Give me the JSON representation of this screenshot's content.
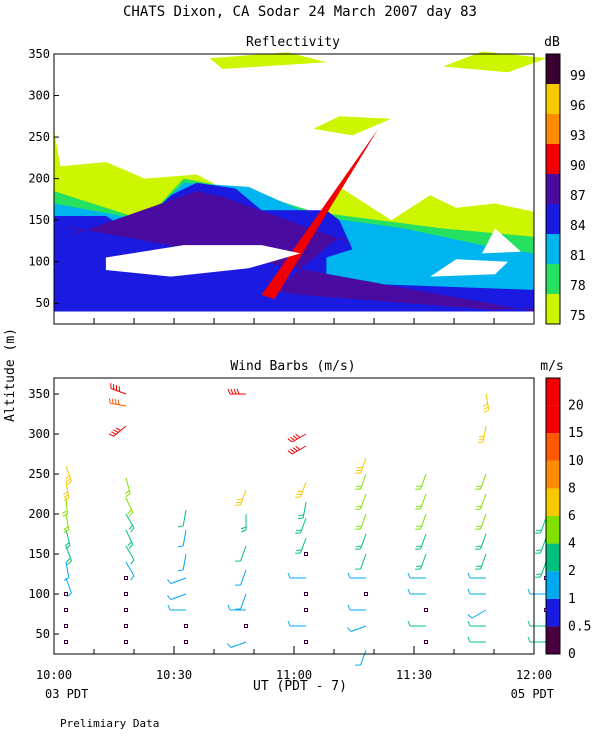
{
  "title": "CHATS Dixon, CA   Sodar   24 March 2007   day   83",
  "y_axis_label": "Altitude (m)",
  "x_axis": {
    "label": "UT  (PDT - 7)",
    "ticks": [
      "10:00",
      "10:30",
      "11:00",
      "11:30",
      "12:00"
    ],
    "start_note": "03 PDT",
    "end_note": "05 PDT"
  },
  "footer": "Prelimiary Data",
  "palette": {
    "c0": "#ccf500",
    "c1": "#26e060",
    "c2": "#00b4f0",
    "c3": "#1a1ae0",
    "c4": "#4a0ca0",
    "c5": "#f00000",
    "c6": "#ff8c00",
    "c7": "#f8c800",
    "c8": "#3a0030"
  },
  "chart_data": [
    {
      "type": "heatmap",
      "title": "Reflectivity",
      "unit": "dB",
      "ylim": [
        25,
        350
      ],
      "yticks": [
        50,
        100,
        150,
        200,
        250,
        300,
        350
      ],
      "xlim": [
        "10:00",
        "12:00"
      ],
      "colorbar": [
        {
          "label": "75",
          "color": "#ccf500"
        },
        {
          "label": "78",
          "color": "#26e060"
        },
        {
          "label": "81",
          "color": "#00b4f0"
        },
        {
          "label": "84",
          "color": "#1a1ae0"
        },
        {
          "label": "87",
          "color": "#4a0ca0"
        },
        {
          "label": "90",
          "color": "#f00000"
        },
        {
          "label": "93",
          "color": "#ff8c00"
        },
        {
          "label": "96",
          "color": "#f8c800"
        },
        {
          "label": "99",
          "color": "#3a0030"
        }
      ],
      "regions": [
        {
          "level": "c0",
          "points": [
            [
              0,
              40
            ],
            [
              0,
              258
            ],
            [
              1,
              215
            ],
            [
              8,
              220
            ],
            [
              14,
              200
            ],
            [
              22,
              205
            ],
            [
              28,
              180
            ],
            [
              34,
              170
            ],
            [
              40,
              150
            ],
            [
              44,
              190
            ],
            [
              48,
              170
            ],
            [
              52,
              150
            ],
            [
              58,
              180
            ],
            [
              62,
              165
            ],
            [
              68,
              170
            ],
            [
              74,
              160
            ],
            [
              74,
              40
            ]
          ]
        },
        {
          "level": "c0",
          "points": [
            [
              24,
              345
            ],
            [
              36,
              352
            ],
            [
              42,
              340
            ],
            [
              26,
              332
            ]
          ]
        },
        {
          "level": "c0",
          "points": [
            [
              60,
              335
            ],
            [
              66,
              353
            ],
            [
              76,
              345
            ],
            [
              70,
              328
            ]
          ]
        },
        {
          "level": "c0",
          "points": [
            [
              40,
              260
            ],
            [
              44,
              275
            ],
            [
              52,
              272
            ],
            [
              46,
              252
            ]
          ]
        },
        {
          "level": "c1",
          "points": [
            [
              0,
              40
            ],
            [
              0,
              185
            ],
            [
              14,
              150
            ],
            [
              20,
              200
            ],
            [
              30,
              185
            ],
            [
              40,
              160
            ],
            [
              60,
              140
            ],
            [
              74,
              130
            ],
            [
              74,
              40
            ]
          ]
        },
        {
          "level": "c2",
          "points": [
            [
              0,
              40
            ],
            [
              0,
              170
            ],
            [
              14,
              150
            ],
            [
              20,
              195
            ],
            [
              30,
              190
            ],
            [
              40,
              155
            ],
            [
              54,
              140
            ],
            [
              66,
              120
            ],
            [
              74,
              110
            ],
            [
              74,
              40
            ]
          ]
        },
        {
          "level": "c3",
          "points": [
            [
              0,
              40
            ],
            [
              0,
              155
            ],
            [
              8,
              155
            ],
            [
              12,
              135
            ],
            [
              14,
              150
            ],
            [
              18,
              180
            ],
            [
              22,
              195
            ],
            [
              28,
              188
            ],
            [
              32,
              162
            ],
            [
              42,
              162
            ],
            [
              44,
              150
            ],
            [
              46,
              115
            ],
            [
              42,
              105
            ],
            [
              42,
              75
            ],
            [
              60,
              70
            ],
            [
              74,
              66
            ],
            [
              74,
              40
            ]
          ]
        },
        {
          "level": "c4",
          "points": [
            [
              0,
              145
            ],
            [
              4,
              138
            ],
            [
              2,
              130
            ],
            [
              22,
              185
            ],
            [
              26,
              178
            ],
            [
              46,
              122
            ],
            [
              44,
              130
            ],
            [
              34,
              65
            ],
            [
              38,
              60
            ],
            [
              68,
              42
            ],
            [
              74,
              44
            ],
            [
              74,
              40
            ]
          ]
        },
        {
          "level": "c5",
          "points": [
            [
              32,
              60
            ],
            [
              34,
              55
            ],
            [
              50,
              260
            ]
          ]
        }
      ],
      "holes": [
        {
          "points": [
            [
              8,
              105
            ],
            [
              20,
              120
            ],
            [
              32,
              120
            ],
            [
              38,
              110
            ],
            [
              30,
              92
            ],
            [
              18,
              82
            ],
            [
              8,
              90
            ]
          ]
        },
        {
          "points": [
            [
              58,
              82
            ],
            [
              62,
              103
            ],
            [
              70,
              100
            ],
            [
              68,
              85
            ]
          ]
        },
        {
          "points": [
            [
              66,
              110
            ],
            [
              68,
              140
            ],
            [
              72,
              112
            ]
          ]
        }
      ]
    },
    {
      "type": "scatter",
      "title": "Wind Barbs (m/s)",
      "unit": "m/s",
      "ylim": [
        25,
        370
      ],
      "yticks": [
        50,
        100,
        150,
        200,
        250,
        300,
        350
      ],
      "xlim": [
        "10:00",
        "12:00"
      ],
      "colorbar": [
        {
          "label": "0",
          "color": "#4a0040"
        },
        {
          "label": "0.5",
          "color": "#1a1ae0"
        },
        {
          "label": "1",
          "color": "#00a8f0"
        },
        {
          "label": "2",
          "color": "#00c080"
        },
        {
          "label": "4",
          "color": "#80e000"
        },
        {
          "label": "6",
          "color": "#f8c800"
        },
        {
          "label": "8",
          "color": "#ff8c00"
        },
        {
          "label": "10",
          "color": "#ff5a00"
        },
        {
          "label": "15",
          "color": "#f00000"
        },
        {
          "label": "20",
          "color": "#f00000"
        }
      ],
      "colorbar_ticks": [
        "0",
        "0.5",
        "1",
        "2",
        "4",
        "6",
        "8",
        "10",
        "15",
        "20"
      ],
      "points": [
        {
          "t": "10:00",
          "alt": 40,
          "speed": 0
        },
        {
          "t": "10:00",
          "alt": 60,
          "speed": 0
        },
        {
          "t": "10:00",
          "alt": 80,
          "speed": 0
        },
        {
          "t": "10:00",
          "alt": 100,
          "speed": 0
        },
        {
          "t": "10:00",
          "alt": 120,
          "speed": 1,
          "dir": 160
        },
        {
          "t": "10:00",
          "alt": 140,
          "speed": 1,
          "dir": 170
        },
        {
          "t": "10:00",
          "alt": 160,
          "speed": 3,
          "dir": 160
        },
        {
          "t": "10:00",
          "alt": 180,
          "speed": 3,
          "dir": 165
        },
        {
          "t": "10:00",
          "alt": 200,
          "speed": 4,
          "dir": 170
        },
        {
          "t": "10:00",
          "alt": 220,
          "speed": 4,
          "dir": 175
        },
        {
          "t": "10:00",
          "alt": 240,
          "speed": 6,
          "dir": 170
        },
        {
          "t": "10:00",
          "alt": 260,
          "speed": 6,
          "dir": 160
        },
        {
          "t": "10:15",
          "alt": 40,
          "speed": 0
        },
        {
          "t": "10:15",
          "alt": 60,
          "speed": 0
        },
        {
          "t": "10:15",
          "alt": 80,
          "speed": 0
        },
        {
          "t": "10:15",
          "alt": 100,
          "speed": 0
        },
        {
          "t": "10:15",
          "alt": 120,
          "speed": 0
        },
        {
          "t": "10:15",
          "alt": 140,
          "speed": 1,
          "dir": 150
        },
        {
          "t": "10:15",
          "alt": 160,
          "speed": 2,
          "dir": 150
        },
        {
          "t": "10:15",
          "alt": 180,
          "speed": 3,
          "dir": 155
        },
        {
          "t": "10:15",
          "alt": 200,
          "speed": 3,
          "dir": 150
        },
        {
          "t": "10:15",
          "alt": 220,
          "speed": 4,
          "dir": 155
        },
        {
          "t": "10:15",
          "alt": 245,
          "speed": 4,
          "dir": 165
        },
        {
          "t": "10:15",
          "alt": 310,
          "speed": 15,
          "dir": 230
        },
        {
          "t": "10:15",
          "alt": 335,
          "speed": 12,
          "dir": 280
        },
        {
          "t": "10:15",
          "alt": 350,
          "speed": 20,
          "dir": 290
        },
        {
          "t": "10:30",
          "alt": 40,
          "speed": 0
        },
        {
          "t": "10:30",
          "alt": 60,
          "speed": 0
        },
        {
          "t": "10:30",
          "alt": 80,
          "speed": 1,
          "dir": 270
        },
        {
          "t": "10:30",
          "alt": 100,
          "speed": 1,
          "dir": 250
        },
        {
          "t": "10:30",
          "alt": 120,
          "speed": 1,
          "dir": 250
        },
        {
          "t": "10:30",
          "alt": 150,
          "speed": 1,
          "dir": 190
        },
        {
          "t": "10:30",
          "alt": 180,
          "speed": 1,
          "dir": 190
        },
        {
          "t": "10:30",
          "alt": 205,
          "speed": 2,
          "dir": 190
        },
        {
          "t": "10:45",
          "alt": 40,
          "speed": 1,
          "dir": 250
        },
        {
          "t": "10:45",
          "alt": 60,
          "speed": 0
        },
        {
          "t": "10:45",
          "alt": 80,
          "speed": 1,
          "dir": 270
        },
        {
          "t": "10:45",
          "alt": 100,
          "speed": 1,
          "dir": 200
        },
        {
          "t": "10:45",
          "alt": 130,
          "speed": 1,
          "dir": 200
        },
        {
          "t": "10:45",
          "alt": 160,
          "speed": 2,
          "dir": 200
        },
        {
          "t": "10:45",
          "alt": 200,
          "speed": 3,
          "dir": 180
        },
        {
          "t": "10:45",
          "alt": 230,
          "speed": 6,
          "dir": 200
        },
        {
          "t": "10:45",
          "alt": 350,
          "speed": 15,
          "dir": 270
        },
        {
          "t": "11:00",
          "alt": 40,
          "speed": 0
        },
        {
          "t": "11:00",
          "alt": 60,
          "speed": 1,
          "dir": 270
        },
        {
          "t": "11:00",
          "alt": 80,
          "speed": 0
        },
        {
          "t": "11:00",
          "alt": 100,
          "speed": 0
        },
        {
          "t": "11:00",
          "alt": 120,
          "speed": 1,
          "dir": 270
        },
        {
          "t": "11:00",
          "alt": 150,
          "speed": 0
        },
        {
          "t": "11:00",
          "alt": 170,
          "speed": 3,
          "dir": 200
        },
        {
          "t": "11:00",
          "alt": 195,
          "speed": 3,
          "dir": 200
        },
        {
          "t": "11:00",
          "alt": 215,
          "speed": 3,
          "dir": 190
        },
        {
          "t": "11:00",
          "alt": 240,
          "speed": 6,
          "dir": 200
        },
        {
          "t": "11:00",
          "alt": 285,
          "speed": 15,
          "dir": 240
        },
        {
          "t": "11:00",
          "alt": 300,
          "speed": 15,
          "dir": 240
        },
        {
          "t": "11:15",
          "alt": 30,
          "speed": 1,
          "dir": 200
        },
        {
          "t": "11:15",
          "alt": 60,
          "speed": 1,
          "dir": 250
        },
        {
          "t": "11:15",
          "alt": 80,
          "speed": 1,
          "dir": 270
        },
        {
          "t": "11:15",
          "alt": 100,
          "speed": 0
        },
        {
          "t": "11:15",
          "alt": 120,
          "speed": 1,
          "dir": 270
        },
        {
          "t": "11:15",
          "alt": 150,
          "speed": 2,
          "dir": 200
        },
        {
          "t": "11:15",
          "alt": 175,
          "speed": 3,
          "dir": 200
        },
        {
          "t": "11:15",
          "alt": 200,
          "speed": 4,
          "dir": 200
        },
        {
          "t": "11:15",
          "alt": 225,
          "speed": 4,
          "dir": 200
        },
        {
          "t": "11:15",
          "alt": 250,
          "speed": 4,
          "dir": 200
        },
        {
          "t": "11:15",
          "alt": 270,
          "speed": 6,
          "dir": 200
        },
        {
          "t": "11:30",
          "alt": 40,
          "speed": 0
        },
        {
          "t": "11:30",
          "alt": 60,
          "speed": 2,
          "dir": 270
        },
        {
          "t": "11:30",
          "alt": 80,
          "speed": 0
        },
        {
          "t": "11:30",
          "alt": 100,
          "speed": 1,
          "dir": 270
        },
        {
          "t": "11:30",
          "alt": 120,
          "speed": 1,
          "dir": 270
        },
        {
          "t": "11:30",
          "alt": 150,
          "speed": 3,
          "dir": 200
        },
        {
          "t": "11:30",
          "alt": 175,
          "speed": 3,
          "dir": 200
        },
        {
          "t": "11:30",
          "alt": 200,
          "speed": 4,
          "dir": 200
        },
        {
          "t": "11:30",
          "alt": 225,
          "speed": 4,
          "dir": 200
        },
        {
          "t": "11:30",
          "alt": 250,
          "speed": 4,
          "dir": 200
        },
        {
          "t": "11:45",
          "alt": 40,
          "speed": 2,
          "dir": 270
        },
        {
          "t": "11:45",
          "alt": 60,
          "speed": 2,
          "dir": 270
        },
        {
          "t": "11:45",
          "alt": 80,
          "speed": 1,
          "dir": 240
        },
        {
          "t": "11:45",
          "alt": 100,
          "speed": 1,
          "dir": 270
        },
        {
          "t": "11:45",
          "alt": 120,
          "speed": 1,
          "dir": 270
        },
        {
          "t": "11:45",
          "alt": 150,
          "speed": 3,
          "dir": 200
        },
        {
          "t": "11:45",
          "alt": 175,
          "speed": 3,
          "dir": 200
        },
        {
          "t": "11:45",
          "alt": 200,
          "speed": 4,
          "dir": 200
        },
        {
          "t": "11:45",
          "alt": 225,
          "speed": 4,
          "dir": 200
        },
        {
          "t": "11:45",
          "alt": 250,
          "speed": 4,
          "dir": 200
        },
        {
          "t": "11:45",
          "alt": 310,
          "speed": 6,
          "dir": 190
        },
        {
          "t": "11:45",
          "alt": 350,
          "speed": 6,
          "dir": 170
        },
        {
          "t": "12:00",
          "alt": 40,
          "speed": 2,
          "dir": 270
        },
        {
          "t": "12:00",
          "alt": 60,
          "speed": 2,
          "dir": 270
        },
        {
          "t": "12:00",
          "alt": 80,
          "speed": 0
        },
        {
          "t": "12:00",
          "alt": 100,
          "speed": 1,
          "dir": 270
        },
        {
          "t": "12:00",
          "alt": 120,
          "speed": 0
        },
        {
          "t": "12:00",
          "alt": 140,
          "speed": 3,
          "dir": 200
        },
        {
          "t": "12:00",
          "alt": 170,
          "speed": 3,
          "dir": 200
        },
        {
          "t": "12:00",
          "alt": 195,
          "speed": 3,
          "dir": 200
        }
      ]
    }
  ]
}
